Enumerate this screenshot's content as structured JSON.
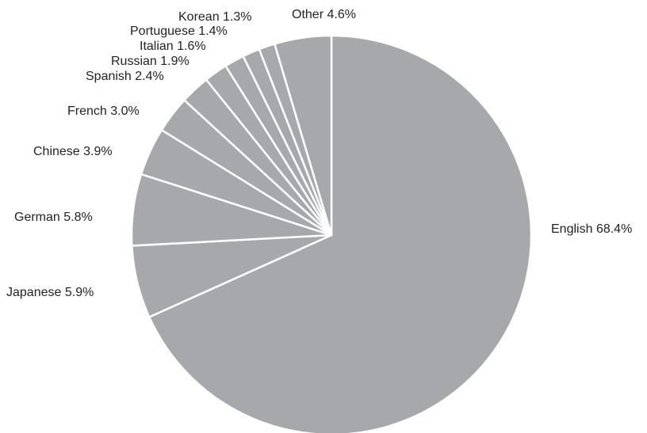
{
  "chart_data": {
    "type": "pie",
    "categories": [
      "English",
      "Japanese",
      "German",
      "Chinese",
      "French",
      "Spanish",
      "Russian",
      "Italian",
      "Portuguese",
      "Korean",
      "Other"
    ],
    "values": [
      68.4,
      5.9,
      5.8,
      3.9,
      3.0,
      2.4,
      1.9,
      1.6,
      1.4,
      1.3,
      4.6
    ],
    "value_labels": [
      "68.4%",
      "5.9%",
      "5.8%",
      "3.9%",
      "3.0%",
      "2.4%",
      "1.9%",
      "1.6%",
      "1.4%",
      "1.3%",
      "4.6%"
    ],
    "color": "#a7a8ab"
  }
}
